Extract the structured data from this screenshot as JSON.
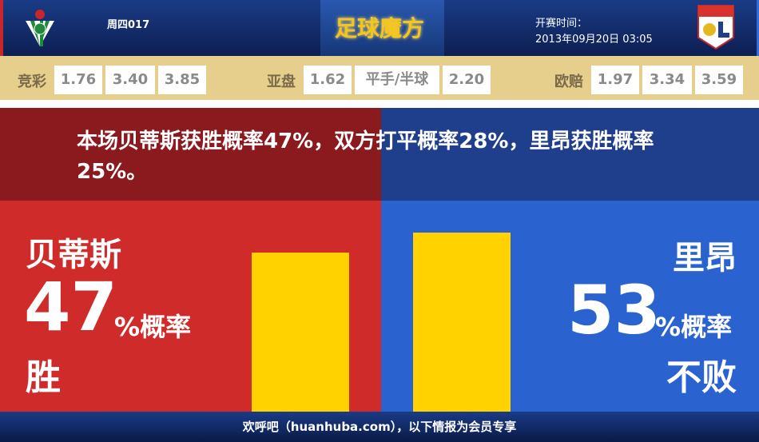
{
  "header": {
    "match_no": "周四017",
    "logo_text": "足球魔方",
    "time_label": "开赛时间：",
    "time_value": "2013年09月20日 03:05",
    "home_crest": "real-betis-crest-icon",
    "away_crest": "olympique-lyonnais-crest-icon"
  },
  "odds": {
    "jingcai": {
      "label": "竞彩",
      "values": [
        "1.76",
        "3.40",
        "3.85"
      ]
    },
    "yapan": {
      "label": "亚盘",
      "values": [
        "1.62",
        "平手/半球",
        "2.20"
      ]
    },
    "oupei": {
      "label": "欧赔",
      "values": [
        "1.97",
        "3.34",
        "3.59"
      ]
    }
  },
  "summary": "本场贝蒂斯获胜概率47%，双方打平概率28%，里昂获胜概率25%。",
  "home": {
    "name": "贝蒂斯",
    "pct": "47",
    "suffix": "%概率",
    "result": "胜",
    "value": 47
  },
  "away": {
    "name": "里昂",
    "pct": "53",
    "suffix": "%概率",
    "result": "不败",
    "value": 53
  },
  "colors": {
    "home_dark": "#8b1a1e",
    "home": "#d02b2b",
    "away_dark": "#1f3f8c",
    "away": "#2a62d0",
    "bar": "#ffd200"
  },
  "footer": "欢呼吧（huanhuba.com），以下情报为会员专享"
}
